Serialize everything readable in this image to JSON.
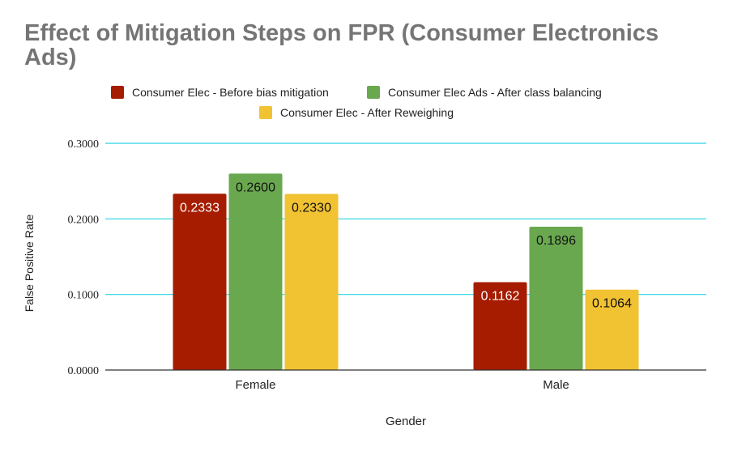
{
  "chart_data": {
    "type": "bar",
    "title": "Effect of Mitigation Steps on FPR (Consumer Electronics Ads)",
    "xlabel": "Gender",
    "ylabel": "False Positive Rate",
    "categories": [
      "Female",
      "Male"
    ],
    "series": [
      {
        "name": "Consumer Elec - Before bias mitigation",
        "color": "#a61c00",
        "values": [
          0.2333,
          0.1162
        ],
        "labels": [
          "0.2333",
          "0.1162"
        ]
      },
      {
        "name": "Consumer Elec Ads - After class balancing",
        "color": "#6aa84f",
        "values": [
          0.26,
          0.1896
        ],
        "labels": [
          "0.2600",
          "0.1896"
        ]
      },
      {
        "name": "Consumer Elec - After Reweighing",
        "color": "#f1c232",
        "values": [
          0.233,
          0.1064
        ],
        "labels": [
          "0.2330",
          "0.1064"
        ]
      }
    ],
    "ylim": [
      0,
      0.3
    ],
    "yticks": [
      "0.0000",
      "0.1000",
      "0.2000",
      "0.3000"
    ],
    "grid": true,
    "legend_position": "top"
  }
}
